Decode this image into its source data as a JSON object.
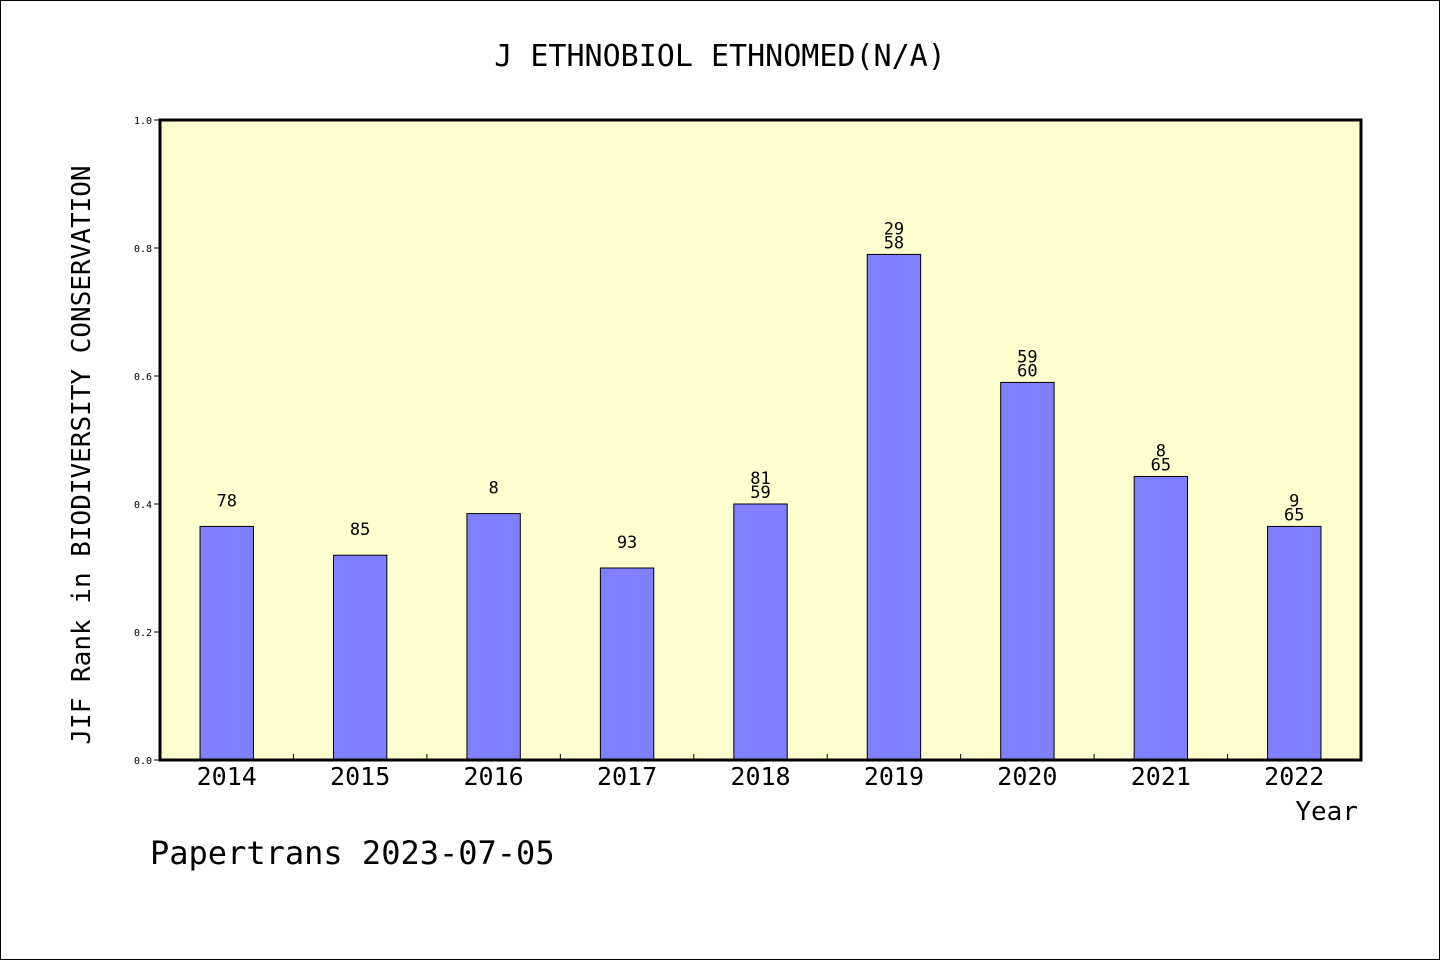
{
  "chart_data": {
    "type": "bar",
    "title": "J ETHNOBIOL ETHNOMED(N/A)",
    "xlabel": "Year",
    "ylabel": "JIF Rank in BIODIVERSITY CONSERVATION",
    "ylim": [
      0,
      1.0
    ],
    "yticks": [
      "0.0",
      "0.2",
      "0.4",
      "0.6",
      "0.8",
      "1.0"
    ],
    "categories": [
      "2014",
      "2015",
      "2016",
      "2017",
      "2018",
      "2019",
      "2020",
      "2021",
      "2022"
    ],
    "values": [
      0.365,
      0.32,
      0.385,
      0.3,
      0.4,
      0.79,
      0.59,
      0.443,
      0.365
    ],
    "bar_labels": [
      [
        "78"
      ],
      [
        "85"
      ],
      [
        "8"
      ],
      [
        "93"
      ],
      [
        "81",
        "59"
      ],
      [
        "29",
        "58"
      ],
      [
        "59",
        "60"
      ],
      [
        "8",
        "65"
      ],
      [
        "9",
        "65"
      ]
    ],
    "grid": false,
    "colors": {
      "plot_background": "#ffffd0",
      "bar_fill": "#8080ff",
      "bar_stroke": "#000000"
    }
  },
  "footer": {
    "credit": "Papertrans 2023-07-05"
  }
}
